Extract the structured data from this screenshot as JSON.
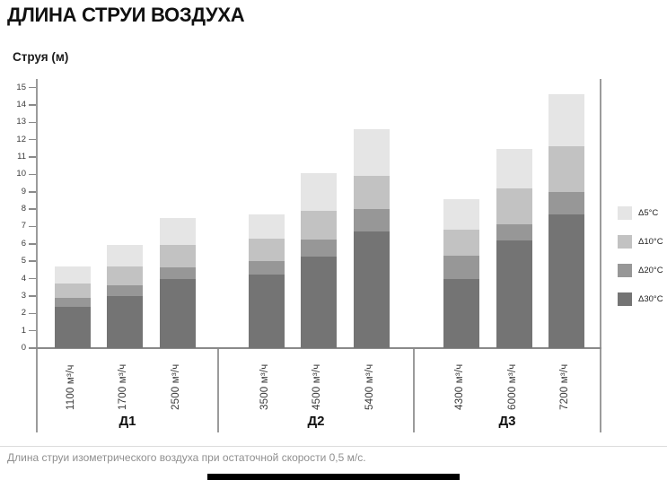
{
  "header": {
    "title": "ДЛИНА СТРУИ ВОЗДУХА"
  },
  "footer": {
    "caption": "Длина струи изометрического воздуха при остаточной скорости 0,5 м/с."
  },
  "chart_data": {
    "type": "bar",
    "subtype": "stacked-temperature-differential",
    "title": "ДЛИНА СТРУИ ВОЗДУХА",
    "ylabel": "Струя (м)",
    "ylim": [
      0,
      15
    ],
    "ytick_step": 1,
    "grid": false,
    "legend_position": "right",
    "legend": [
      {
        "key": "d5",
        "label": "Δ5°C",
        "color": "#e5e5e5"
      },
      {
        "key": "d10",
        "label": "Δ10°C",
        "color": "#c2c2c2"
      },
      {
        "key": "d20",
        "label": "Δ20°C",
        "color": "#979797"
      },
      {
        "key": "d30",
        "label": "Δ30°C",
        "color": "#747474"
      }
    ],
    "value_meaning": "cumulative jet length (m) at each temperature differential",
    "groups": [
      {
        "label": "Д1",
        "bars": [
          {
            "flow": "1100 м³/ч",
            "lengths": {
              "d30": 2.4,
              "d20": 2.9,
              "d10": 3.7,
              "d5": 4.7
            }
          },
          {
            "flow": "1700 м³/ч",
            "lengths": {
              "d30": 3.0,
              "d20": 3.6,
              "d10": 4.7,
              "d5": 5.95
            }
          },
          {
            "flow": "2500 м³/ч",
            "lengths": {
              "d30": 4.0,
              "d20": 4.65,
              "d10": 5.95,
              "d5": 7.5
            }
          }
        ]
      },
      {
        "label": "Д2",
        "bars": [
          {
            "flow": "3500 м³/ч",
            "lengths": {
              "d30": 4.25,
              "d20": 5.0,
              "d10": 6.3,
              "d5": 7.7
            }
          },
          {
            "flow": "4500 м³/ч",
            "lengths": {
              "d30": 5.25,
              "d20": 6.25,
              "d10": 7.9,
              "d5": 10.05
            }
          },
          {
            "flow": "5400 м³/ч",
            "lengths": {
              "d30": 6.7,
              "d20": 8.0,
              "d10": 9.9,
              "d5": 12.6
            }
          }
        ]
      },
      {
        "label": "Д3",
        "bars": [
          {
            "flow": "4300 м³/ч",
            "lengths": {
              "d30": 4.0,
              "d20": 5.3,
              "d10": 6.8,
              "d5": 8.6
            }
          },
          {
            "flow": "6000 м³/ч",
            "lengths": {
              "d30": 6.2,
              "d20": 7.15,
              "d10": 9.2,
              "d5": 11.45
            }
          },
          {
            "flow": "7200 м³/ч",
            "lengths": {
              "d30": 7.7,
              "d20": 9.0,
              "d10": 11.6,
              "d5": 14.6
            }
          }
        ]
      }
    ]
  }
}
